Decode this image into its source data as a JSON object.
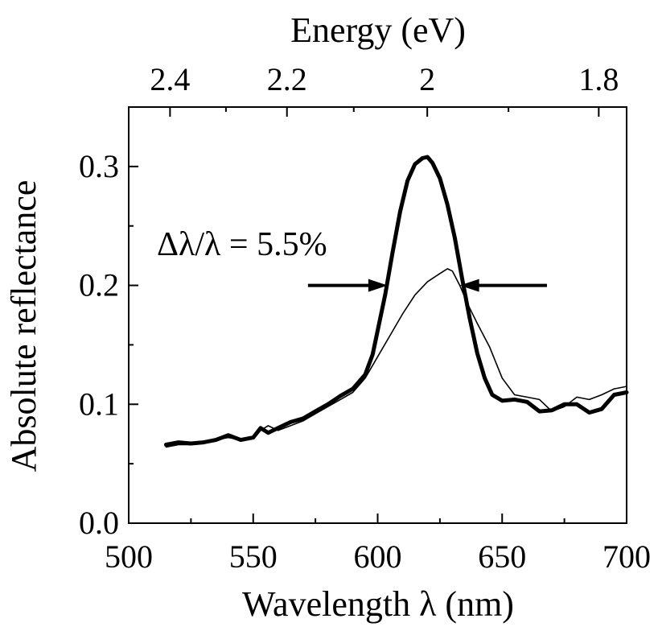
{
  "chart_data": {
    "type": "line",
    "xlabel": "Wavelength λ (nm)",
    "ylabel": "Absolute reflectance",
    "top_axis_label": "Energy (eV)",
    "xlim": [
      500,
      700
    ],
    "ylim": [
      0.0,
      0.35
    ],
    "x_ticks": [
      500,
      550,
      600,
      650,
      700
    ],
    "x_tick_labels": [
      "500",
      "550",
      "600",
      "650",
      "700"
    ],
    "y_ticks": [
      0.0,
      0.1,
      0.2,
      0.3
    ],
    "y_tick_labels": [
      "0.0",
      "0.1",
      "0.2",
      "0.3"
    ],
    "top_ticks": [
      2.4,
      2.2,
      2.0,
      1.8
    ],
    "top_tick_labels": [
      "2.4",
      "2.2",
      "2",
      "1.8"
    ],
    "grid": false,
    "legend": "none",
    "annotation": {
      "text": "Δλ/λ = 5.5%",
      "arrow_y": 0.2,
      "left_arrow_x": [
        572,
        604
      ],
      "right_arrow_x": [
        633,
        668
      ]
    },
    "series": [
      {
        "style": "thick",
        "color": "#000000",
        "x": [
          515,
          520,
          525,
          530,
          535,
          540,
          545,
          550,
          553,
          556,
          560,
          565,
          570,
          575,
          580,
          585,
          590,
          595,
          598,
          600,
          603,
          606,
          609,
          612,
          615,
          618,
          620,
          622,
          625,
          628,
          631,
          634,
          637,
          640,
          643,
          646,
          650,
          655,
          660,
          665,
          670,
          675,
          680,
          685,
          690,
          695,
          700
        ],
        "y": [
          0.066,
          0.068,
          0.067,
          0.068,
          0.07,
          0.074,
          0.07,
          0.072,
          0.08,
          0.076,
          0.08,
          0.085,
          0.088,
          0.094,
          0.1,
          0.107,
          0.113,
          0.125,
          0.142,
          0.162,
          0.192,
          0.228,
          0.262,
          0.288,
          0.302,
          0.307,
          0.308,
          0.303,
          0.29,
          0.268,
          0.24,
          0.205,
          0.172,
          0.143,
          0.122,
          0.108,
          0.103,
          0.104,
          0.102,
          0.094,
          0.095,
          0.1,
          0.1,
          0.093,
          0.096,
          0.108,
          0.11
        ]
      },
      {
        "style": "thin",
        "color": "#000000",
        "x": [
          515,
          520,
          525,
          530,
          535,
          540,
          545,
          550,
          553,
          556,
          560,
          565,
          570,
          575,
          580,
          585,
          590,
          595,
          600,
          605,
          610,
          615,
          620,
          625,
          628,
          630,
          633,
          636,
          640,
          645,
          650,
          655,
          660,
          665,
          670,
          675,
          680,
          685,
          690,
          695,
          700
        ],
        "y": [
          0.064,
          0.066,
          0.066,
          0.067,
          0.07,
          0.072,
          0.07,
          0.073,
          0.078,
          0.082,
          0.078,
          0.082,
          0.086,
          0.092,
          0.098,
          0.104,
          0.11,
          0.122,
          0.14,
          0.158,
          0.176,
          0.192,
          0.203,
          0.21,
          0.214,
          0.212,
          0.2,
          0.185,
          0.168,
          0.148,
          0.122,
          0.108,
          0.106,
          0.104,
          0.094,
          0.098,
          0.106,
          0.104,
          0.108,
          0.113,
          0.115
        ]
      }
    ]
  }
}
